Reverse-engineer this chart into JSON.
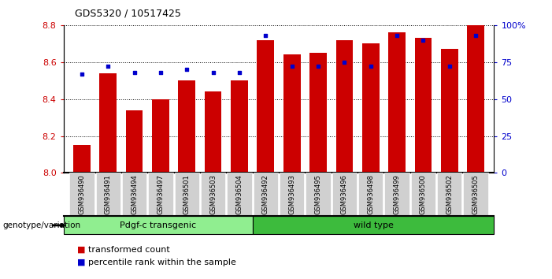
{
  "title": "GDS5320 / 10517425",
  "samples": [
    "GSM936490",
    "GSM936491",
    "GSM936494",
    "GSM936497",
    "GSM936501",
    "GSM936503",
    "GSM936504",
    "GSM936492",
    "GSM936493",
    "GSM936495",
    "GSM936496",
    "GSM936498",
    "GSM936499",
    "GSM936500",
    "GSM936502",
    "GSM936505"
  ],
  "bar_values": [
    8.15,
    8.54,
    8.34,
    8.4,
    8.5,
    8.44,
    8.5,
    8.72,
    8.64,
    8.65,
    8.72,
    8.7,
    8.76,
    8.73,
    8.67,
    8.8
  ],
  "percentile_values": [
    67,
    72,
    68,
    68,
    70,
    68,
    68,
    93,
    72,
    72,
    75,
    72,
    93,
    90,
    72,
    93
  ],
  "ylim": [
    8.0,
    8.8
  ],
  "y2lim": [
    0,
    100
  ],
  "yticks": [
    8.0,
    8.2,
    8.4,
    8.6,
    8.8
  ],
  "y2ticks": [
    0,
    25,
    50,
    75,
    100
  ],
  "bar_color": "#cc0000",
  "dot_color": "#0000cc",
  "grid_color": "#000000",
  "background_color": "#ffffff",
  "tick_label_color_left": "#cc0000",
  "tick_label_color_right": "#0000cc",
  "groups": [
    {
      "label": "Pdgf-c transgenic",
      "start": 0,
      "end": 6,
      "color": "#90ee90"
    },
    {
      "label": "wild type",
      "start": 7,
      "end": 15,
      "color": "#3dbb3d"
    }
  ],
  "group_label": "genotype/variation",
  "legend_items": [
    {
      "color": "#cc0000",
      "label": "transformed count"
    },
    {
      "color": "#0000cc",
      "label": "percentile rank within the sample"
    }
  ],
  "bar_width": 0.65,
  "xticklabel_bg": "#d0d0d0",
  "n_transgenic": 7,
  "n_total": 16
}
